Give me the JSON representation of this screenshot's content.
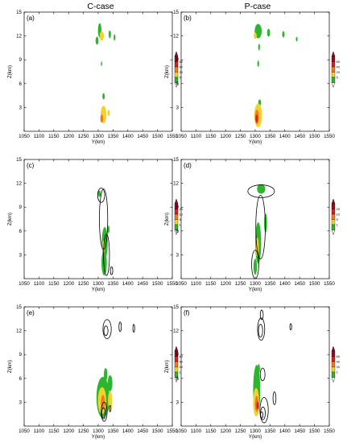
{
  "column_titles": [
    "C-case",
    "P-case"
  ],
  "colors": {
    "levels": [
      "#2db52d",
      "#f2d22e",
      "#f07a1e",
      "#d82020",
      "#8a1024"
    ],
    "contour": "#000000",
    "frame": "#000000"
  },
  "chart_data": [
    {
      "type": "heatmap",
      "label": "(a)",
      "xlabel": "Y(km)",
      "ylabel": "Z(km)",
      "xlim": [
        1050,
        1550
      ],
      "ylim": [
        0,
        15
      ],
      "xticks": [
        "1050",
        "1100",
        "1150",
        "1200",
        "1250",
        "1300",
        "1350",
        "1400",
        "1450",
        "1500",
        "1550"
      ],
      "yticks": [
        "3",
        "6",
        "9",
        "12",
        "15"
      ],
      "colorbar": {
        "ticks": [
          "5",
          "20",
          "40",
          "60"
        ]
      },
      "blobs": [
        {
          "y": 1305,
          "z": 12.7,
          "wy": 6,
          "wz": 0.9,
          "level": 1
        },
        {
          "y": 1312,
          "z": 12.0,
          "wy": 7,
          "wz": 0.6,
          "level": 2
        },
        {
          "y": 1296,
          "z": 11.4,
          "wy": 5,
          "wz": 0.5,
          "level": 1
        },
        {
          "y": 1339,
          "z": 12.2,
          "wy": 4,
          "wz": 0.5,
          "level": 1
        },
        {
          "y": 1355,
          "z": 11.8,
          "wy": 3,
          "wz": 0.4,
          "level": 1
        },
        {
          "y": 1318,
          "z": 2.1,
          "wy": 10,
          "wz": 1.1,
          "level": 2
        },
        {
          "y": 1312,
          "z": 1.6,
          "wy": 5,
          "wz": 0.5,
          "level": 3
        },
        {
          "y": 1335,
          "z": 2.3,
          "wy": 4,
          "wz": 0.4,
          "level": 2
        },
        {
          "y": 1318,
          "z": 4.4,
          "wy": 4,
          "wz": 0.4,
          "level": 1
        },
        {
          "y": 1311,
          "z": 8.5,
          "wy": 2,
          "wz": 0.3,
          "level": 1
        }
      ],
      "contours": []
    },
    {
      "type": "heatmap",
      "label": "(b)",
      "xlabel": "Y(km)",
      "ylabel": "Z(km)",
      "xlim": [
        1050,
        1550
      ],
      "ylim": [
        0,
        15
      ],
      "xticks": [
        "1050",
        "1100",
        "1150",
        "1200",
        "1250",
        "1300",
        "1350",
        "1400",
        "1450",
        "1500",
        "1550"
      ],
      "yticks": [
        "3",
        "6",
        "9",
        "12",
        "15"
      ],
      "colorbar": {
        "ticks": [
          "5",
          "20",
          "40",
          "60"
        ]
      },
      "blobs": [
        {
          "y": 1310,
          "z": 12.6,
          "wy": 12,
          "wz": 0.9,
          "level": 1
        },
        {
          "y": 1300,
          "z": 12.0,
          "wy": 5,
          "wz": 0.4,
          "level": 2
        },
        {
          "y": 1345,
          "z": 12.4,
          "wy": 5,
          "wz": 0.5,
          "level": 1
        },
        {
          "y": 1395,
          "z": 12.2,
          "wy": 4,
          "wz": 0.4,
          "level": 1
        },
        {
          "y": 1440,
          "z": 11.6,
          "wy": 3,
          "wz": 0.3,
          "level": 1
        },
        {
          "y": 1313,
          "z": 10.6,
          "wy": 3,
          "wz": 0.4,
          "level": 1
        },
        {
          "y": 1310,
          "z": 8.5,
          "wy": 3,
          "wz": 0.4,
          "level": 1
        },
        {
          "y": 1315,
          "z": 3.6,
          "wy": 5,
          "wz": 0.4,
          "level": 1
        },
        {
          "y": 1310,
          "z": 2.0,
          "wy": 13,
          "wz": 1.5,
          "level": 2
        },
        {
          "y": 1306,
          "z": 1.8,
          "wy": 7,
          "wz": 0.9,
          "level": 3
        },
        {
          "y": 1305,
          "z": 1.6,
          "wy": 4,
          "wz": 0.5,
          "level": 4
        }
      ],
      "contours": []
    },
    {
      "type": "heatmap",
      "label": "(c)",
      "xlabel": "Y(km)",
      "ylabel": "Z(km)",
      "xlim": [
        1050,
        1550
      ],
      "ylim": [
        0,
        15
      ],
      "xticks": [
        "1050",
        "1100",
        "1150",
        "1200",
        "1250",
        "1300",
        "1350",
        "1400",
        "1450",
        "1500",
        "1550"
      ],
      "yticks": [
        "3",
        "6",
        "9",
        "12",
        "15"
      ],
      "colorbar": {
        "ticks": [
          "1",
          "5",
          "10",
          "20"
        ]
      },
      "blobs": [
        {
          "y": 1322,
          "z": 4.5,
          "wy": 10,
          "wz": 2.0,
          "level": 1
        },
        {
          "y": 1320,
          "z": 2.0,
          "wy": 9,
          "wz": 1.6,
          "level": 1
        },
        {
          "y": 1318,
          "z": 4.0,
          "wy": 4,
          "wz": 0.8,
          "level": 2
        },
        {
          "y": 1304,
          "z": 10.7,
          "wy": 5,
          "wz": 0.4,
          "level": 1
        },
        {
          "y": 1335,
          "z": 6.2,
          "wy": 3,
          "wz": 0.5,
          "level": 1
        }
      ],
      "contours": [
        {
          "y": 1318,
          "z": 7.5,
          "wy": 14,
          "wz": 3.8
        },
        {
          "y": 1310,
          "z": 10.5,
          "wy": 12,
          "wz": 0.9
        },
        {
          "y": 1328,
          "z": 3.0,
          "wy": 10,
          "wz": 2.6
        },
        {
          "y": 1345,
          "z": 1.0,
          "wy": 4,
          "wz": 0.5
        }
      ]
    },
    {
      "type": "heatmap",
      "label": "(d)",
      "xlabel": "Y(km)",
      "ylabel": "Z(km)",
      "xlim": [
        1050,
        1550
      ],
      "ylim": [
        0,
        15
      ],
      "xticks": [
        "1050",
        "1100",
        "1150",
        "1200",
        "1250",
        "1300",
        "1350",
        "1400",
        "1450",
        "1500",
        "1550"
      ],
      "yticks": [
        "3",
        "6",
        "9",
        "12",
        "15"
      ],
      "colorbar": {
        "ticks": [
          "1",
          "5",
          "10",
          "20"
        ]
      },
      "blobs": [
        {
          "y": 1320,
          "z": 11.3,
          "wy": 14,
          "wz": 0.6,
          "level": 1
        },
        {
          "y": 1310,
          "z": 4.5,
          "wy": 10,
          "wz": 2.6,
          "level": 1
        },
        {
          "y": 1307,
          "z": 4.0,
          "wy": 5,
          "wz": 1.2,
          "level": 2
        },
        {
          "y": 1300,
          "z": 1.5,
          "wy": 6,
          "wz": 1.0,
          "level": 1
        },
        {
          "y": 1335,
          "z": 7.0,
          "wy": 5,
          "wz": 1.2,
          "level": 1
        }
      ],
      "contours": [
        {
          "y": 1320,
          "z": 11.0,
          "wy": 45,
          "wz": 0.8
        },
        {
          "y": 1318,
          "z": 6.5,
          "wy": 16,
          "wz": 4.0
        },
        {
          "y": 1300,
          "z": 1.8,
          "wy": 12,
          "wz": 1.8
        }
      ]
    },
    {
      "type": "heatmap",
      "label": "(e)",
      "xlabel": "Y(km)",
      "ylabel": "Z(km)",
      "xlim": [
        1050,
        1550
      ],
      "ylim": [
        0,
        15
      ],
      "xticks": [
        "1050",
        "1100",
        "1150",
        "1200",
        "1250",
        "1300",
        "1350",
        "1400",
        "1450",
        "1500",
        "1550"
      ],
      "yticks": [
        "3",
        "6",
        "9",
        "12",
        "15"
      ],
      "colorbar": {
        "ticks": [
          "1",
          "20",
          "40",
          "60"
        ]
      },
      "blobs": [
        {
          "y": 1316,
          "z": 3.6,
          "wy": 22,
          "wz": 2.6,
          "level": 1
        },
        {
          "y": 1313,
          "z": 3.2,
          "wy": 14,
          "wz": 1.7,
          "level": 2
        },
        {
          "y": 1316,
          "z": 3.0,
          "wy": 7,
          "wz": 0.9,
          "level": 3
        },
        {
          "y": 1340,
          "z": 3.2,
          "wy": 7,
          "wz": 1.2,
          "level": 2
        },
        {
          "y": 1340,
          "z": 5.4,
          "wy": 8,
          "wz": 1.0,
          "level": 1
        },
        {
          "y": 1325,
          "z": 6.5,
          "wy": 6,
          "wz": 0.8,
          "level": 1
        }
      ],
      "contours": [
        {
          "y": 1330,
          "z": 12.2,
          "wy": 14,
          "wz": 1.2
        },
        {
          "y": 1326,
          "z": 12.0,
          "wy": 7,
          "wz": 0.6
        },
        {
          "y": 1374,
          "z": 12.5,
          "wy": 4,
          "wz": 0.6
        },
        {
          "y": 1420,
          "z": 12.3,
          "wy": 3,
          "wz": 0.5
        },
        {
          "y": 1320,
          "z": 1.8,
          "wy": 10,
          "wz": 1.2
        },
        {
          "y": 1318,
          "z": 1.6,
          "wy": 6,
          "wz": 0.7
        },
        {
          "y": 1340,
          "z": 2.2,
          "wy": 3,
          "wz": 0.4
        }
      ]
    },
    {
      "type": "heatmap",
      "label": "(f)",
      "xlabel": "Y(km)",
      "ylabel": "Z(km)",
      "xlim": [
        1050,
        1550
      ],
      "ylim": [
        0,
        15
      ],
      "xticks": [
        "1050",
        "1100",
        "1150",
        "1200",
        "1250",
        "1300",
        "1350",
        "1400",
        "1450",
        "1500",
        "1550"
      ],
      "yticks": [
        "3",
        "6",
        "9",
        "12",
        "15"
      ],
      "colorbar": {
        "ticks": [
          "1",
          "20",
          "40",
          "60"
        ]
      },
      "blobs": [
        {
          "y": 1305,
          "z": 4.5,
          "wy": 12,
          "wz": 3.2,
          "level": 1
        },
        {
          "y": 1303,
          "z": 3.0,
          "wy": 10,
          "wz": 1.8,
          "level": 2
        },
        {
          "y": 1305,
          "z": 2.8,
          "wy": 6,
          "wz": 1.0,
          "level": 3
        },
        {
          "y": 1308,
          "z": 2.6,
          "wy": 4,
          "wz": 0.5,
          "level": 4
        },
        {
          "y": 1312,
          "z": 7.2,
          "wy": 4,
          "wz": 0.6,
          "level": 1
        }
      ],
      "contours": [
        {
          "y": 1320,
          "z": 12.2,
          "wy": 12,
          "wz": 1.4
        },
        {
          "y": 1318,
          "z": 12.0,
          "wy": 7,
          "wz": 0.8
        },
        {
          "y": 1322,
          "z": 14.0,
          "wy": 5,
          "wz": 0.6
        },
        {
          "y": 1325,
          "z": 6.5,
          "wy": 8,
          "wz": 0.8
        },
        {
          "y": 1330,
          "z": 2.0,
          "wy": 14,
          "wz": 1.6
        },
        {
          "y": 1326,
          "z": 1.6,
          "wy": 8,
          "wz": 0.8
        },
        {
          "y": 1322,
          "z": 1.4,
          "wy": 4,
          "wz": 0.4
        },
        {
          "y": 1365,
          "z": 3.5,
          "wy": 5,
          "wz": 0.8
        },
        {
          "y": 1420,
          "z": 12.5,
          "wy": 3,
          "wz": 0.4
        }
      ]
    }
  ]
}
